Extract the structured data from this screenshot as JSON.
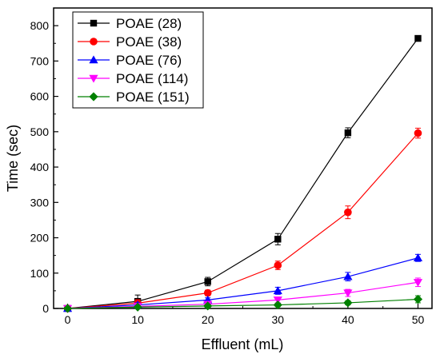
{
  "chart_data": {
    "type": "line",
    "title": "",
    "xlabel": "Effluent (mL)",
    "ylabel": "Time (sec)",
    "x": [
      0,
      10,
      20,
      30,
      40,
      50
    ],
    "xlim": [
      -2,
      52
    ],
    "ylim": [
      0,
      850
    ],
    "xticks": [
      0,
      10,
      20,
      30,
      40,
      50
    ],
    "yticks": [
      0,
      100,
      200,
      300,
      400,
      500,
      600,
      700,
      800
    ],
    "grid": false,
    "legend_position": "top-left",
    "series": [
      {
        "name": "POAE (28)",
        "color": "#000000",
        "marker": "square",
        "values": [
          0,
          20,
          76,
          196,
          497,
          764
        ],
        "errors": [
          8,
          18,
          12,
          16,
          14,
          8
        ]
      },
      {
        "name": "POAE (38)",
        "color": "#ff0000",
        "marker": "circle",
        "values": [
          0,
          15,
          44,
          122,
          272,
          496
        ],
        "errors": [
          6,
          10,
          8,
          12,
          18,
          14
        ]
      },
      {
        "name": "POAE (76)",
        "color": "#0000ff",
        "marker": "triangle-up",
        "values": [
          0,
          10,
          24,
          50,
          90,
          143
        ],
        "errors": [
          4,
          6,
          6,
          10,
          12,
          10
        ]
      },
      {
        "name": "POAE (114)",
        "color": "#ff00ff",
        "marker": "triangle-down",
        "values": [
          0,
          6,
          12,
          24,
          44,
          74
        ],
        "errors": [
          3,
          4,
          5,
          8,
          10,
          12
        ]
      },
      {
        "name": "POAE (151)",
        "color": "#008000",
        "marker": "diamond",
        "values": [
          0,
          4,
          7,
          10,
          16,
          26
        ],
        "errors": [
          3,
          3,
          4,
          5,
          6,
          10
        ]
      }
    ]
  }
}
